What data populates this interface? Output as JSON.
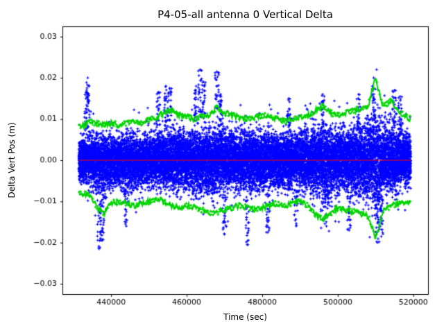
{
  "chart_data": {
    "type": "scatter",
    "title": "P4-05-all antenna 0 Vertical Delta",
    "xlabel": "Time (sec)",
    "ylabel": "Delta Vert Pos (m)",
    "xlim": [
      427100,
      523900
    ],
    "ylim": [
      -0.0325,
      0.0325
    ],
    "xticks": [
      440000,
      460000,
      480000,
      500000,
      520000
    ],
    "xtick_labels": [
      "440000",
      "460000",
      "480000",
      "500000",
      "520000"
    ],
    "yticks": [
      -0.03,
      -0.02,
      -0.01,
      0.0,
      0.01,
      0.02,
      0.03
    ],
    "ytick_labels": [
      "−0.03",
      "−0.02",
      "−0.01",
      "0.00",
      "0.01",
      "0.02",
      "0.03"
    ],
    "x_data_range": [
      431500,
      519300
    ],
    "grid": false,
    "legend": "none",
    "series": [
      {
        "name": "vertical-delta-noise",
        "type": "scatter-noise-band",
        "marker": "+",
        "color": "#0000ff",
        "center": 0.0,
        "typical_halfwidth": 0.01,
        "max_extent": 0.022,
        "description": "dense blue + marker noise band centered on zero, width follows green envelopes"
      },
      {
        "name": "zero-reference-line",
        "type": "hline",
        "color": "#ff0000",
        "y": 0.0
      },
      {
        "name": "upper-envelope",
        "type": "line-markers",
        "marker": "+",
        "color": "#00d400",
        "x": [
          432000,
          434000,
          436000,
          438000,
          440000,
          442000,
          444000,
          446000,
          448000,
          450000,
          452000,
          454000,
          456000,
          458000,
          460000,
          462000,
          464000,
          466000,
          468000,
          470000,
          472000,
          474000,
          476000,
          478000,
          480000,
          482000,
          484000,
          486000,
          488000,
          490000,
          492000,
          494000,
          496000,
          498000,
          500000,
          502000,
          504000,
          506000,
          508000,
          510000,
          512000,
          514000,
          516000,
          518000,
          519300
        ],
        "y": [
          0.008,
          0.0095,
          0.009,
          0.0085,
          0.009,
          0.0085,
          0.009,
          0.0095,
          0.009,
          0.01,
          0.0105,
          0.0115,
          0.012,
          0.011,
          0.0105,
          0.01,
          0.0105,
          0.011,
          0.013,
          0.0115,
          0.011,
          0.0105,
          0.01,
          0.0105,
          0.011,
          0.0105,
          0.01,
          0.0095,
          0.01,
          0.0105,
          0.011,
          0.012,
          0.013,
          0.0115,
          0.011,
          0.0115,
          0.012,
          0.0125,
          0.013,
          0.02,
          0.013,
          0.0145,
          0.012,
          0.0105,
          0.01
        ]
      },
      {
        "name": "lower-envelope",
        "type": "line-markers",
        "marker": "+",
        "color": "#00d400",
        "x": [
          432000,
          434000,
          436000,
          438000,
          440000,
          442000,
          444000,
          446000,
          448000,
          450000,
          452000,
          454000,
          456000,
          458000,
          460000,
          462000,
          464000,
          466000,
          468000,
          470000,
          472000,
          474000,
          476000,
          478000,
          480000,
          482000,
          484000,
          486000,
          488000,
          490000,
          492000,
          494000,
          496000,
          498000,
          500000,
          502000,
          504000,
          506000,
          508000,
          510000,
          512000,
          514000,
          516000,
          518000,
          519300
        ],
        "y": [
          -0.008,
          -0.0085,
          -0.011,
          -0.013,
          -0.0105,
          -0.01,
          -0.0105,
          -0.011,
          -0.0105,
          -0.01,
          -0.0095,
          -0.01,
          -0.011,
          -0.0115,
          -0.011,
          -0.0115,
          -0.012,
          -0.013,
          -0.0125,
          -0.012,
          -0.0115,
          -0.011,
          -0.0115,
          -0.012,
          -0.0115,
          -0.011,
          -0.0105,
          -0.011,
          -0.0105,
          -0.01,
          -0.011,
          -0.013,
          -0.0145,
          -0.013,
          -0.0115,
          -0.012,
          -0.0125,
          -0.013,
          -0.0135,
          -0.019,
          -0.0125,
          -0.011,
          -0.0105,
          -0.01,
          -0.01
        ]
      }
    ],
    "spikes": [
      {
        "x": 433500,
        "y": 0.017
      },
      {
        "x": 433800,
        "y": 0.02
      },
      {
        "x": 436800,
        "y": -0.0215
      },
      {
        "x": 437600,
        "y": -0.0195
      },
      {
        "x": 444000,
        "y": -0.016
      },
      {
        "x": 452500,
        "y": 0.0165
      },
      {
        "x": 454500,
        "y": 0.018
      },
      {
        "x": 455500,
        "y": 0.0175
      },
      {
        "x": 462500,
        "y": 0.018
      },
      {
        "x": 463500,
        "y": 0.022
      },
      {
        "x": 464500,
        "y": 0.019
      },
      {
        "x": 468000,
        "y": 0.0215
      },
      {
        "x": 469000,
        "y": 0.016
      },
      {
        "x": 470000,
        "y": -0.018
      },
      {
        "x": 476000,
        "y": -0.0205
      },
      {
        "x": 481500,
        "y": -0.0175
      },
      {
        "x": 487000,
        "y": 0.015
      },
      {
        "x": 489000,
        "y": -0.016
      },
      {
        "x": 496000,
        "y": 0.016
      },
      {
        "x": 497000,
        "y": -0.016
      },
      {
        "x": 503000,
        "y": -0.017
      },
      {
        "x": 505500,
        "y": 0.016
      },
      {
        "x": 509500,
        "y": 0.02
      },
      {
        "x": 510500,
        "y": -0.02
      },
      {
        "x": 511500,
        "y": -0.0185
      },
      {
        "x": 515000,
        "y": 0.017
      },
      {
        "x": 516500,
        "y": 0.0155
      }
    ],
    "colors": {
      "scatter": "#0000ff",
      "envelope": "#00d400",
      "zero_line": "#ff0000",
      "axes": "#000000",
      "background": "#ffffff"
    }
  }
}
